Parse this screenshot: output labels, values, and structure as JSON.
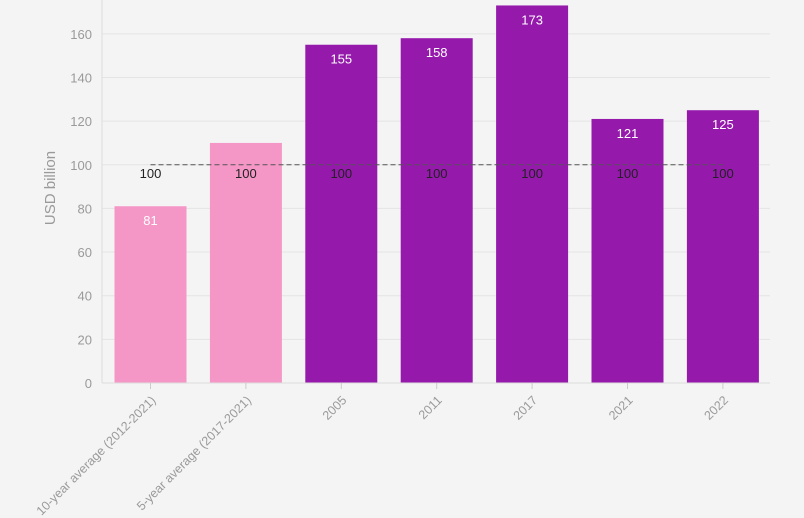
{
  "chart_data": {
    "type": "bar",
    "title": "",
    "ylabel": "USD billion",
    "xlabel": "",
    "ylim": [
      0,
      180
    ],
    "yticks": [
      0,
      20,
      40,
      60,
      80,
      100,
      120,
      140,
      160
    ],
    "grid": true,
    "categories": [
      "10-year average (2012-2021)",
      "5-year average (2017-2021)",
      "2005",
      "2011",
      "2017",
      "2021",
      "2022"
    ],
    "values": [
      81,
      110,
      155,
      158,
      173,
      121,
      125
    ],
    "data_labels": [
      "81",
      "",
      "155",
      "158",
      "173",
      "121",
      "125"
    ],
    "bar_colors": [
      "#f597c6",
      "#f597c6",
      "#951aac",
      "#951aac",
      "#951aac",
      "#951aac",
      "#951aac"
    ],
    "reference_line": {
      "value": 100,
      "style": "dashed",
      "color": "#555555",
      "label": "100"
    }
  }
}
